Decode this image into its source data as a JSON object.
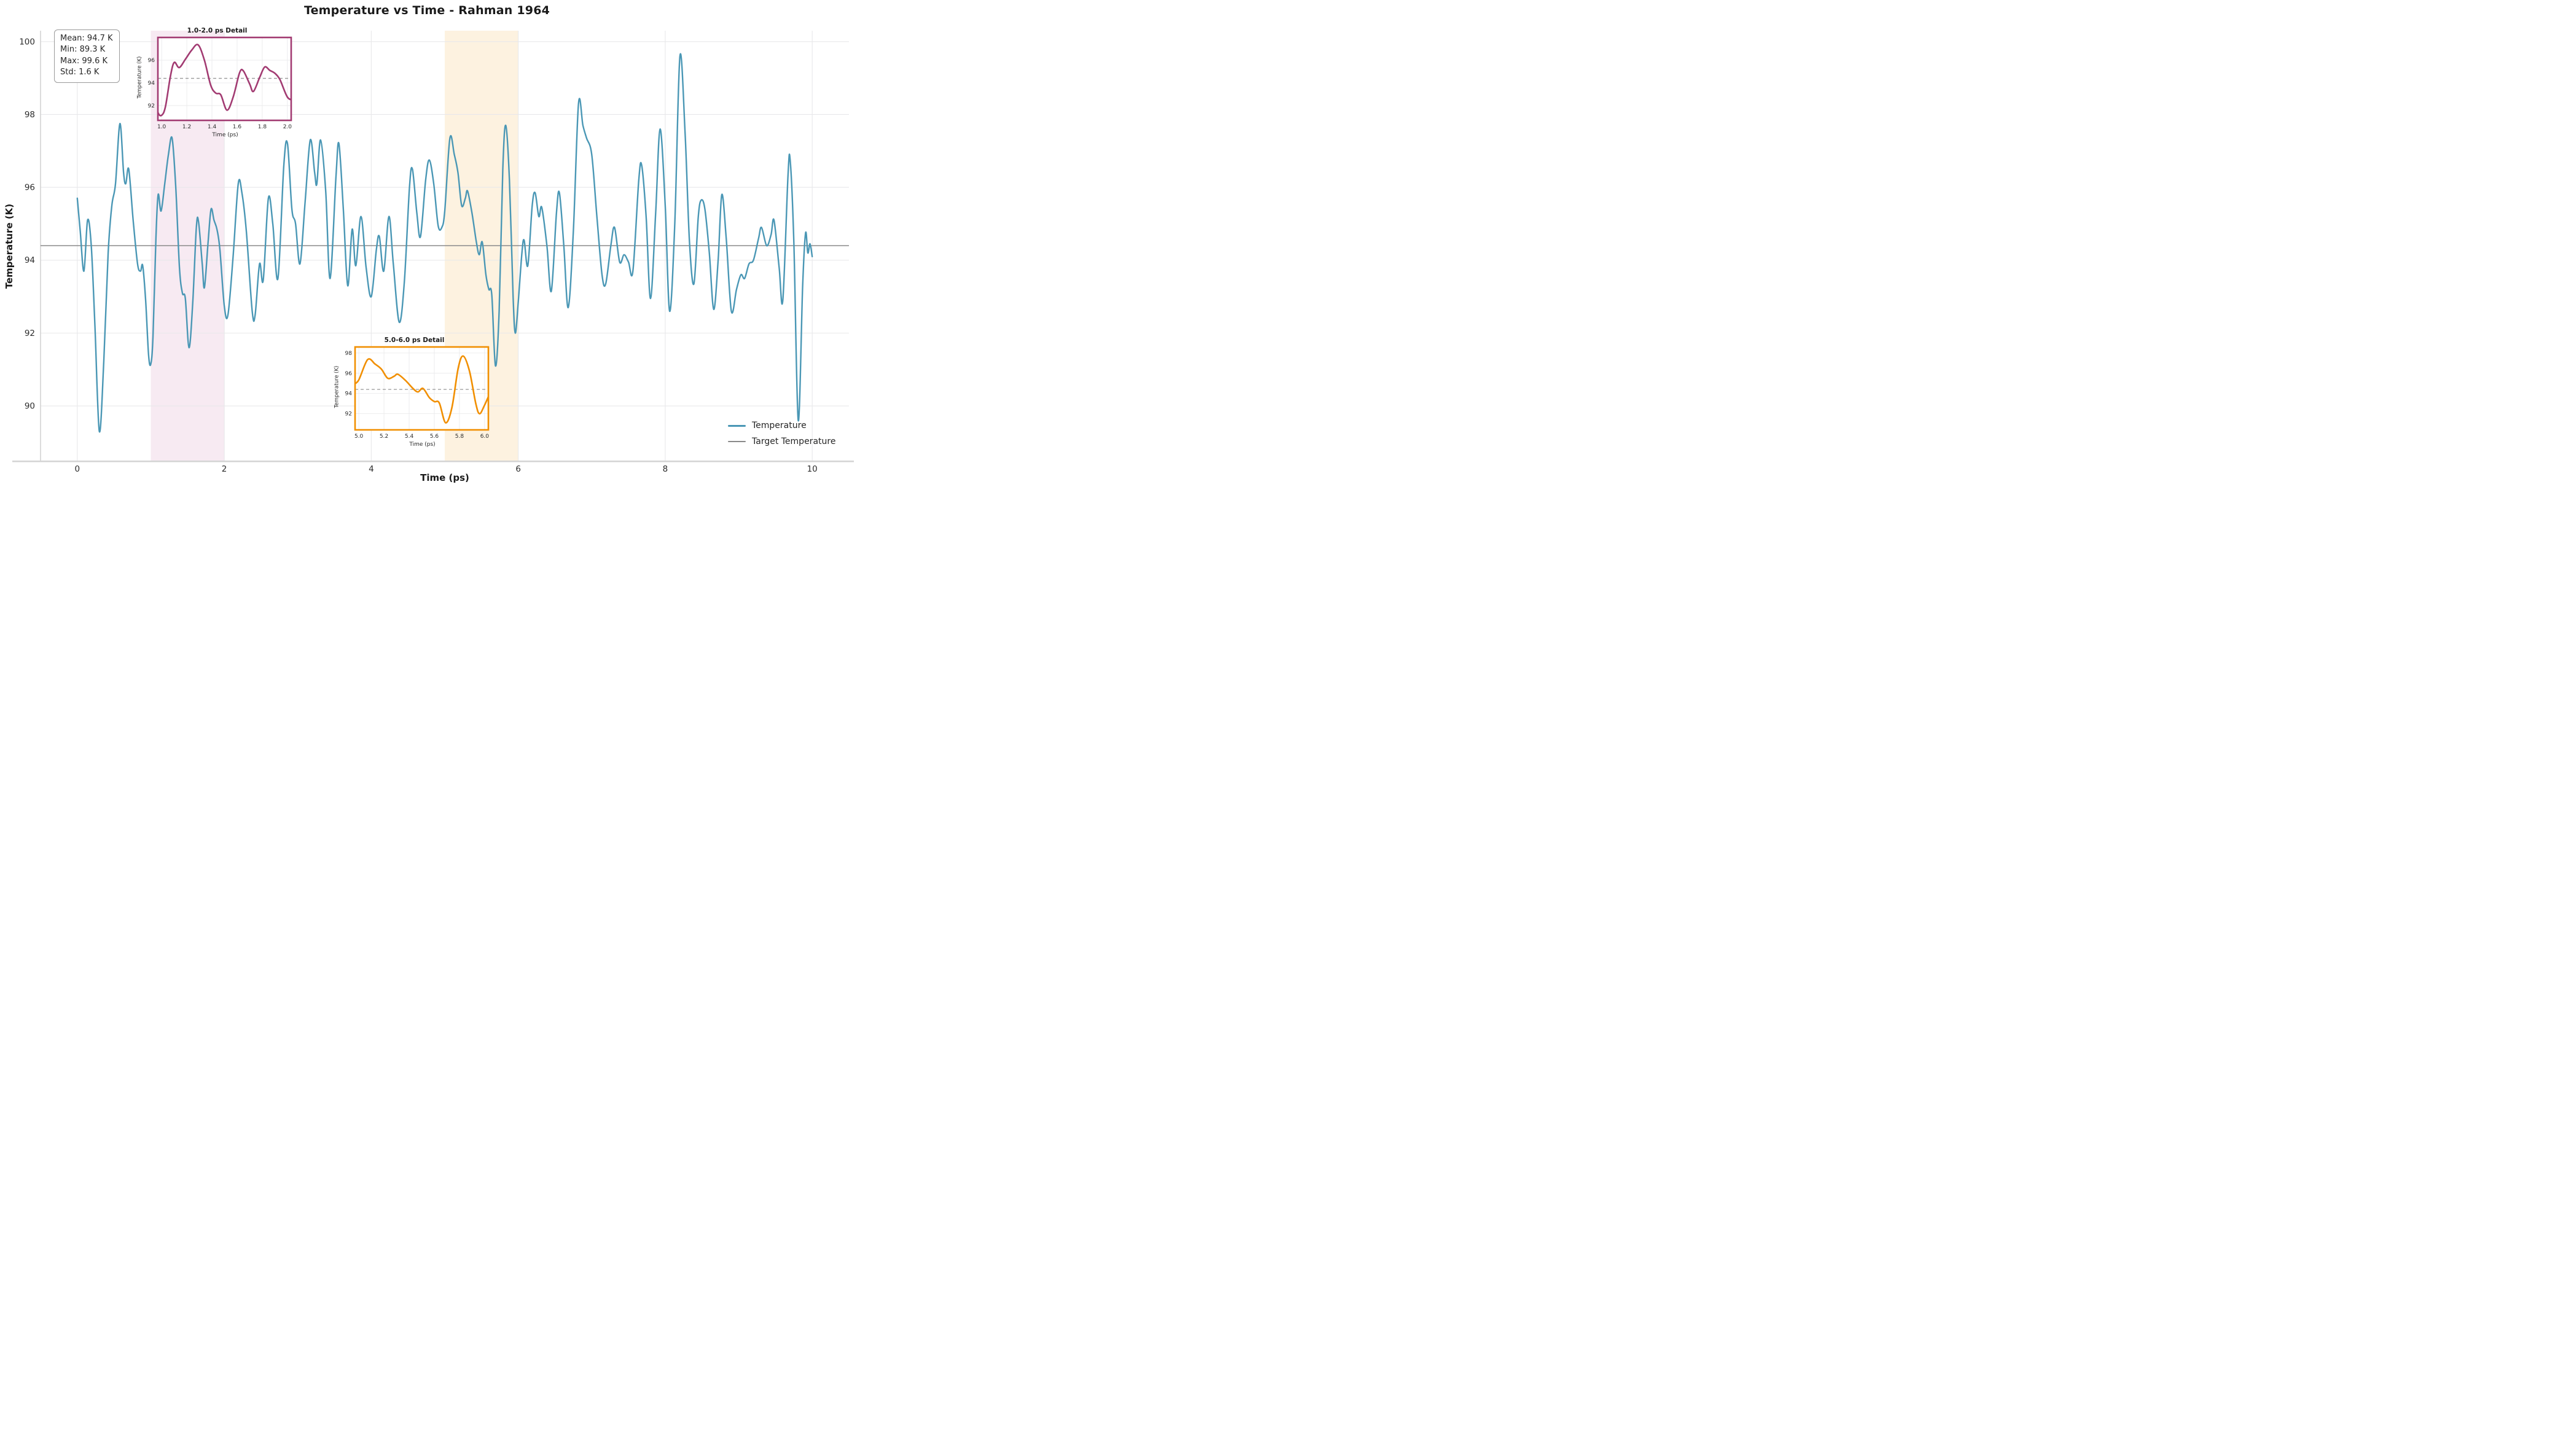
{
  "page": {
    "title": "Temperature vs Time - Rahman 1964"
  },
  "stats_box": {
    "lines": [
      "Mean: 94.7 K",
      "Min: 89.3 K",
      "Max: 99.6 K",
      "Std: 1.6 K"
    ]
  },
  "legend": {
    "items": [
      {
        "label": "Temperature",
        "color": "#4a97b5",
        "thickness": 3
      },
      {
        "label": "Target Temperature",
        "color": "#8a8a8a",
        "thickness": 2.2
      }
    ]
  },
  "colors": {
    "temperature_line": "#4a97b5",
    "target_line": "#8a8a8a",
    "grid": "#e8e8ea",
    "spine": "#d4d4d4",
    "inset1_accent": "#a23b72",
    "inset2_accent": "#f18f01",
    "band1_fill": "#f7eaf2",
    "band2_fill": "#fdf2e0",
    "inset_dashed_target": "#999999"
  },
  "chart_data": {
    "type": "line",
    "title": "Temperature vs Time - Rahman 1964",
    "xlabel": "Time (ps)",
    "ylabel": "Temperature (K)",
    "xlim": [
      -0.5,
      10.5
    ],
    "ylim": [
      88.5,
      100.3
    ],
    "xticks": [
      0,
      2,
      4,
      6,
      8,
      10
    ],
    "yticks": [
      90,
      92,
      94,
      96,
      98,
      100
    ],
    "grid": true,
    "legend_position": "lower right",
    "target_temperature": 94.4,
    "stats": {
      "mean_K": 94.7,
      "min_K": 89.3,
      "max_K": 99.6,
      "std_K": 1.6
    },
    "shaded_regions": [
      {
        "from": 1.0,
        "to": 2.0,
        "color": "#f7eaf2"
      },
      {
        "from": 5.0,
        "to": 6.0,
        "color": "#fdf2e0"
      }
    ],
    "series": [
      {
        "name": "Temperature",
        "color": "#4a97b5",
        "points": [
          [
            0.0,
            95.7
          ],
          [
            0.04,
            94.8
          ],
          [
            0.09,
            93.7
          ],
          [
            0.14,
            95.1
          ],
          [
            0.19,
            94.4
          ],
          [
            0.24,
            92.2
          ],
          [
            0.3,
            89.3
          ],
          [
            0.36,
            91.2
          ],
          [
            0.42,
            94.2
          ],
          [
            0.47,
            95.5
          ],
          [
            0.52,
            96.1
          ],
          [
            0.58,
            97.75
          ],
          [
            0.63,
            96.4
          ],
          [
            0.66,
            96.1
          ],
          [
            0.7,
            96.5
          ],
          [
            0.76,
            95.1
          ],
          [
            0.82,
            93.9
          ],
          [
            0.86,
            93.7
          ],
          [
            0.89,
            93.85
          ],
          [
            0.93,
            92.9
          ],
          [
            0.97,
            91.4
          ],
          [
            1.0,
            91.15
          ],
          [
            1.03,
            91.9
          ],
          [
            1.07,
            94.6
          ],
          [
            1.1,
            95.8
          ],
          [
            1.14,
            95.35
          ],
          [
            1.19,
            96.1
          ],
          [
            1.24,
            96.9
          ],
          [
            1.29,
            97.35
          ],
          [
            1.34,
            96.0
          ],
          [
            1.39,
            93.8
          ],
          [
            1.43,
            93.1
          ],
          [
            1.47,
            92.95
          ],
          [
            1.52,
            91.6
          ],
          [
            1.57,
            92.8
          ],
          [
            1.62,
            94.9
          ],
          [
            1.65,
            95.05
          ],
          [
            1.7,
            93.9
          ],
          [
            1.73,
            93.25
          ],
          [
            1.78,
            94.5
          ],
          [
            1.82,
            95.4
          ],
          [
            1.86,
            95.1
          ],
          [
            1.9,
            94.85
          ],
          [
            1.94,
            94.3
          ],
          [
            2.0,
            92.75
          ],
          [
            2.05,
            92.5
          ],
          [
            2.12,
            94.1
          ],
          [
            2.19,
            96.1
          ],
          [
            2.24,
            95.85
          ],
          [
            2.3,
            94.8
          ],
          [
            2.38,
            92.6
          ],
          [
            2.42,
            92.5
          ],
          [
            2.48,
            93.9
          ],
          [
            2.53,
            93.45
          ],
          [
            2.6,
            95.7
          ],
          [
            2.66,
            95.0
          ],
          [
            2.73,
            93.5
          ],
          [
            2.81,
            96.6
          ],
          [
            2.86,
            97.2
          ],
          [
            2.92,
            95.4
          ],
          [
            2.97,
            95.0
          ],
          [
            3.03,
            93.9
          ],
          [
            3.1,
            95.6
          ],
          [
            3.17,
            97.3
          ],
          [
            3.23,
            96.4
          ],
          [
            3.26,
            96.1
          ],
          [
            3.31,
            97.3
          ],
          [
            3.38,
            95.9
          ],
          [
            3.44,
            93.5
          ],
          [
            3.52,
            96.3
          ],
          [
            3.56,
            97.2
          ],
          [
            3.62,
            95.4
          ],
          [
            3.68,
            93.3
          ],
          [
            3.74,
            94.85
          ],
          [
            3.79,
            93.85
          ],
          [
            3.86,
            95.2
          ],
          [
            3.93,
            93.8
          ],
          [
            4.0,
            93.0
          ],
          [
            4.07,
            94.3
          ],
          [
            4.11,
            94.65
          ],
          [
            4.17,
            93.7
          ],
          [
            4.24,
            95.2
          ],
          [
            4.3,
            93.9
          ],
          [
            4.38,
            92.3
          ],
          [
            4.45,
            93.4
          ],
          [
            4.52,
            96.0
          ],
          [
            4.56,
            96.5
          ],
          [
            4.62,
            95.3
          ],
          [
            4.67,
            94.65
          ],
          [
            4.74,
            96.2
          ],
          [
            4.79,
            96.75
          ],
          [
            4.85,
            96.1
          ],
          [
            4.91,
            94.95
          ],
          [
            4.96,
            94.9
          ],
          [
            5.0,
            95.35
          ],
          [
            5.07,
            97.35
          ],
          [
            5.13,
            96.9
          ],
          [
            5.18,
            96.4
          ],
          [
            5.23,
            95.5
          ],
          [
            5.28,
            95.7
          ],
          [
            5.31,
            95.9
          ],
          [
            5.37,
            95.3
          ],
          [
            5.43,
            94.5
          ],
          [
            5.47,
            94.15
          ],
          [
            5.51,
            94.5
          ],
          [
            5.56,
            93.6
          ],
          [
            5.6,
            93.2
          ],
          [
            5.64,
            93.05
          ],
          [
            5.69,
            91.1
          ],
          [
            5.74,
            92.6
          ],
          [
            5.79,
            96.5
          ],
          [
            5.83,
            97.7
          ],
          [
            5.88,
            96.2
          ],
          [
            5.93,
            93.0
          ],
          [
            5.96,
            92.0
          ],
          [
            6.0,
            92.85
          ],
          [
            6.05,
            94.2
          ],
          [
            6.08,
            94.55
          ],
          [
            6.13,
            93.85
          ],
          [
            6.19,
            95.5
          ],
          [
            6.23,
            95.85
          ],
          [
            6.28,
            95.2
          ],
          [
            6.32,
            95.45
          ],
          [
            6.39,
            94.4
          ],
          [
            6.45,
            93.15
          ],
          [
            6.52,
            95.3
          ],
          [
            6.56,
            95.85
          ],
          [
            6.62,
            94.4
          ],
          [
            6.68,
            92.7
          ],
          [
            6.75,
            94.8
          ],
          [
            6.82,
            98.3
          ],
          [
            6.88,
            97.7
          ],
          [
            6.93,
            97.35
          ],
          [
            7.0,
            96.9
          ],
          [
            7.07,
            95.2
          ],
          [
            7.14,
            93.6
          ],
          [
            7.19,
            93.35
          ],
          [
            7.26,
            94.4
          ],
          [
            7.31,
            94.9
          ],
          [
            7.38,
            93.95
          ],
          [
            7.44,
            94.15
          ],
          [
            7.5,
            93.95
          ],
          [
            7.56,
            93.7
          ],
          [
            7.64,
            96.2
          ],
          [
            7.68,
            96.6
          ],
          [
            7.74,
            95.2
          ],
          [
            7.8,
            92.95
          ],
          [
            7.87,
            95.3
          ],
          [
            7.93,
            97.6
          ],
          [
            8.0,
            95.5
          ],
          [
            8.06,
            92.6
          ],
          [
            8.13,
            95.0
          ],
          [
            8.2,
            99.6
          ],
          [
            8.27,
            97.5
          ],
          [
            8.33,
            94.5
          ],
          [
            8.39,
            93.35
          ],
          [
            8.45,
            95.2
          ],
          [
            8.49,
            95.65
          ],
          [
            8.54,
            95.4
          ],
          [
            8.6,
            94.2
          ],
          [
            8.66,
            92.65
          ],
          [
            8.72,
            94.0
          ],
          [
            8.77,
            95.8
          ],
          [
            8.83,
            94.6
          ],
          [
            8.9,
            92.6
          ],
          [
            8.97,
            93.2
          ],
          [
            9.03,
            93.6
          ],
          [
            9.08,
            93.5
          ],
          [
            9.14,
            93.9
          ],
          [
            9.2,
            94.0
          ],
          [
            9.27,
            94.6
          ],
          [
            9.31,
            94.9
          ],
          [
            9.38,
            94.4
          ],
          [
            9.44,
            94.7
          ],
          [
            9.48,
            95.1
          ],
          [
            9.55,
            93.8
          ],
          [
            9.6,
            92.9
          ],
          [
            9.67,
            96.3
          ],
          [
            9.7,
            96.75
          ],
          [
            9.75,
            94.5
          ],
          [
            9.81,
            89.6
          ],
          [
            9.87,
            93.3
          ],
          [
            9.91,
            94.75
          ],
          [
            9.94,
            94.2
          ],
          [
            9.97,
            94.45
          ],
          [
            10.0,
            94.1
          ]
        ]
      },
      {
        "name": "Target Temperature",
        "color": "#8a8a8a",
        "constant_value": 94.4
      }
    ],
    "insets": [
      {
        "title": "1.0-2.0 ps Detail",
        "xlabel": "Time (ps)",
        "ylabel": "Temperature (K)",
        "xlim": [
          0.97,
          2.03
        ],
        "ylim": [
          90.7,
          98.0
        ],
        "xticks": [
          1.0,
          1.2,
          1.4,
          1.6,
          1.8,
          2.0
        ],
        "yticks": [
          92,
          94,
          96
        ],
        "line_color": "#a23b72",
        "border_color": "#a23b72",
        "dashed_target": 94.4
      },
      {
        "title": "5.0-6.0 ps Detail",
        "xlabel": "Time (ps)",
        "ylabel": "Temperature (K)",
        "xlim": [
          4.97,
          6.03
        ],
        "ylim": [
          90.4,
          98.6
        ],
        "xticks": [
          5.0,
          5.2,
          5.4,
          5.6,
          5.8,
          6.0
        ],
        "yticks": [
          92,
          94,
          96,
          98
        ],
        "line_color": "#f18f01",
        "border_color": "#f18f01",
        "dashed_target": 94.4
      }
    ]
  }
}
